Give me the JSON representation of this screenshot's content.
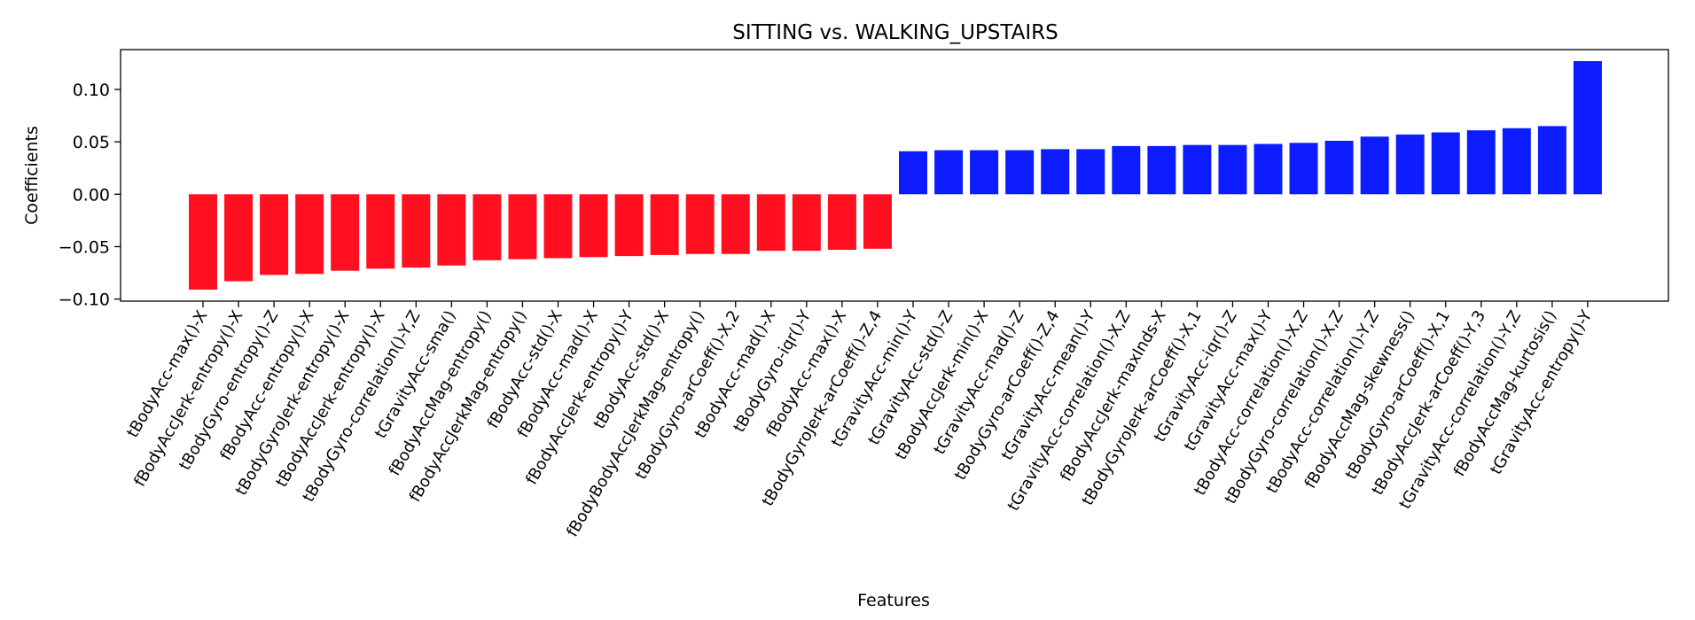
{
  "chart_data": {
    "type": "bar",
    "title": "SITTING vs. WALKING_UPSTAIRS",
    "xlabel": "Features",
    "ylabel": "Coefficients",
    "ylim": [
      -0.102,
      0.138
    ],
    "yticks": [
      -0.1,
      -0.05,
      0.0,
      0.05,
      0.1
    ],
    "ytick_labels": [
      "−0.10",
      "−0.05",
      "0.00",
      "0.05",
      "0.10"
    ],
    "grid": false,
    "legend": "none",
    "colors": {
      "negative": "#ff0f1f",
      "positive": "#0c1cff"
    },
    "categories": [
      "tBodyAcc-max()-X",
      "fBodyAccJerk-entropy()-X",
      "tBodyGyro-entropy()-Z",
      "fBodyAcc-entropy()-X",
      "tBodyGyroJerk-entropy()-X",
      "tBodyAccJerk-entropy()-X",
      "tBodyGyro-correlation()-Y,Z",
      "tGravityAcc-sma()",
      "fBodyAccMag-entropy()",
      "fBodyAccJerkMag-entropy()",
      "fBodyAcc-std()-X",
      "fBodyAcc-mad()-X",
      "fBodyAccJerk-entropy()-Y",
      "tBodyAcc-std()-X",
      "fBodyBodyAccJerkMag-entropy()",
      "tBodyGyro-arCoeff()-X,2",
      "tBodyAcc-mad()-X",
      "tBodyGyro-iqr()-Y",
      "fBodyAcc-max()-X",
      "tBodyGyroJerk-arCoeff()-Z,4",
      "tGravityAcc-min()-Y",
      "tGravityAcc-std()-Z",
      "tBodyAccJerk-min()-X",
      "tGravityAcc-mad()-Z",
      "tBodyGyro-arCoeff()-Z,4",
      "tGravityAcc-mean()-Y",
      "tGravityAcc-correlation()-X,Z",
      "fBodyAccJerk-maxInds-X",
      "tBodyGyroJerk-arCoeff()-X,1",
      "tGravityAcc-iqr()-Z",
      "tGravityAcc-max()-Y",
      "tBodyAcc-correlation()-X,Z",
      "tBodyGyro-correlation()-X,Z",
      "tBodyAcc-correlation()-Y,Z",
      "fBodyAccMag-skewness()",
      "tBodyGyro-arCoeff()-X,1",
      "tBodyAccJerk-arCoeff()-Y,3",
      "tGravityAcc-correlation()-Y,Z",
      "fBodyAccMag-kurtosis()",
      "tGravityAcc-entropy()-Y"
    ],
    "values": [
      -0.091,
      -0.083,
      -0.077,
      -0.076,
      -0.073,
      -0.071,
      -0.07,
      -0.068,
      -0.063,
      -0.062,
      -0.061,
      -0.06,
      -0.059,
      -0.058,
      -0.057,
      -0.057,
      -0.054,
      -0.054,
      -0.053,
      -0.052,
      0.041,
      0.042,
      0.042,
      0.042,
      0.043,
      0.043,
      0.046,
      0.046,
      0.047,
      0.047,
      0.048,
      0.049,
      0.051,
      0.055,
      0.057,
      0.059,
      0.061,
      0.063,
      0.065,
      0.127
    ]
  }
}
